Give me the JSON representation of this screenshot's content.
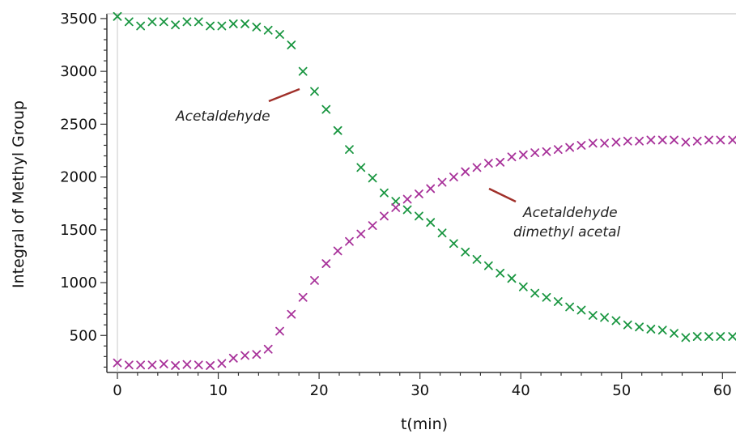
{
  "chart_data": {
    "type": "scatter",
    "title": "",
    "xlabel": "t(min)",
    "ylabel": "Integral of Methyl Group",
    "xlim": [
      0,
      61.5
    ],
    "ylim": [
      180,
      3530
    ],
    "x_ticks": [
      0,
      10,
      20,
      30,
      40,
      50,
      60
    ],
    "y_ticks": [
      500,
      1000,
      1500,
      2000,
      2500,
      3000,
      3500
    ],
    "grid": false,
    "colors": {
      "Acetaldehyde": "#1a9641",
      "Acetaldehyde dimethyl acetal": "#a8329a",
      "annotation_line": "#a0302a"
    },
    "series": [
      {
        "name": "Acetaldehyde",
        "marker": "x",
        "points": [
          [
            0,
            3520
          ],
          [
            1.15,
            3470
          ],
          [
            2.3,
            3430
          ],
          [
            3.45,
            3470
          ],
          [
            4.6,
            3470
          ],
          [
            5.75,
            3440
          ],
          [
            6.9,
            3470
          ],
          [
            8.05,
            3470
          ],
          [
            9.2,
            3430
          ],
          [
            10.35,
            3430
          ],
          [
            11.5,
            3450
          ],
          [
            12.65,
            3450
          ],
          [
            13.8,
            3420
          ],
          [
            14.95,
            3390
          ],
          [
            16.1,
            3350
          ],
          [
            17.25,
            3250
          ],
          [
            18.4,
            3000
          ],
          [
            19.55,
            2810
          ],
          [
            20.7,
            2640
          ],
          [
            21.85,
            2440
          ],
          [
            23.0,
            2260
          ],
          [
            24.15,
            2090
          ],
          [
            25.3,
            1990
          ],
          [
            26.45,
            1850
          ],
          [
            27.6,
            1770
          ],
          [
            28.75,
            1690
          ],
          [
            29.9,
            1630
          ],
          [
            31.05,
            1570
          ],
          [
            32.2,
            1470
          ],
          [
            33.35,
            1370
          ],
          [
            34.5,
            1290
          ],
          [
            35.65,
            1220
          ],
          [
            36.8,
            1160
          ],
          [
            37.95,
            1090
          ],
          [
            39.1,
            1040
          ],
          [
            40.25,
            960
          ],
          [
            41.4,
            900
          ],
          [
            42.55,
            860
          ],
          [
            43.7,
            820
          ],
          [
            44.85,
            770
          ],
          [
            46.0,
            740
          ],
          [
            47.15,
            690
          ],
          [
            48.3,
            670
          ],
          [
            49.45,
            640
          ],
          [
            50.6,
            600
          ],
          [
            51.75,
            580
          ],
          [
            52.9,
            560
          ],
          [
            54.05,
            550
          ],
          [
            55.2,
            520
          ],
          [
            56.35,
            480
          ],
          [
            57.5,
            490
          ],
          [
            58.65,
            490
          ],
          [
            59.8,
            490
          ],
          [
            61.0,
            490
          ]
        ]
      },
      {
        "name": "Acetaldehyde dimethyl acetal",
        "marker": "x",
        "points": [
          [
            0,
            240
          ],
          [
            1.15,
            220
          ],
          [
            2.3,
            220
          ],
          [
            3.45,
            220
          ],
          [
            4.6,
            230
          ],
          [
            5.75,
            215
          ],
          [
            6.9,
            225
          ],
          [
            8.05,
            220
          ],
          [
            9.2,
            215
          ],
          [
            10.35,
            235
          ],
          [
            11.5,
            285
          ],
          [
            12.65,
            310
          ],
          [
            13.8,
            320
          ],
          [
            14.95,
            370
          ],
          [
            16.1,
            540
          ],
          [
            17.25,
            700
          ],
          [
            18.4,
            860
          ],
          [
            19.55,
            1020
          ],
          [
            20.7,
            1180
          ],
          [
            21.85,
            1300
          ],
          [
            23.0,
            1390
          ],
          [
            24.15,
            1460
          ],
          [
            25.3,
            1540
          ],
          [
            26.45,
            1630
          ],
          [
            27.6,
            1710
          ],
          [
            28.75,
            1790
          ],
          [
            29.9,
            1840
          ],
          [
            31.05,
            1890
          ],
          [
            32.2,
            1950
          ],
          [
            33.35,
            2000
          ],
          [
            34.5,
            2050
          ],
          [
            35.65,
            2090
          ],
          [
            36.8,
            2130
          ],
          [
            37.95,
            2140
          ],
          [
            39.1,
            2190
          ],
          [
            40.25,
            2210
          ],
          [
            41.4,
            2230
          ],
          [
            42.55,
            2240
          ],
          [
            43.7,
            2260
          ],
          [
            44.85,
            2280
          ],
          [
            46.0,
            2300
          ],
          [
            47.15,
            2320
          ],
          [
            48.3,
            2320
          ],
          [
            49.45,
            2330
          ],
          [
            50.6,
            2340
          ],
          [
            51.75,
            2340
          ],
          [
            52.9,
            2350
          ],
          [
            54.05,
            2350
          ],
          [
            55.2,
            2350
          ],
          [
            56.35,
            2330
          ],
          [
            57.5,
            2340
          ],
          [
            58.65,
            2350
          ],
          [
            59.8,
            2350
          ],
          [
            61.0,
            2350
          ]
        ]
      }
    ],
    "annotations": [
      {
        "text": "Acetaldehyde",
        "series": "Acetaldehyde"
      },
      {
        "text": "Acetaldehyde dimethyl acetal",
        "lines": [
          "Acetaldehyde",
          "dimethyl acetal"
        ],
        "series": "Acetaldehyde dimethyl acetal"
      }
    ]
  }
}
